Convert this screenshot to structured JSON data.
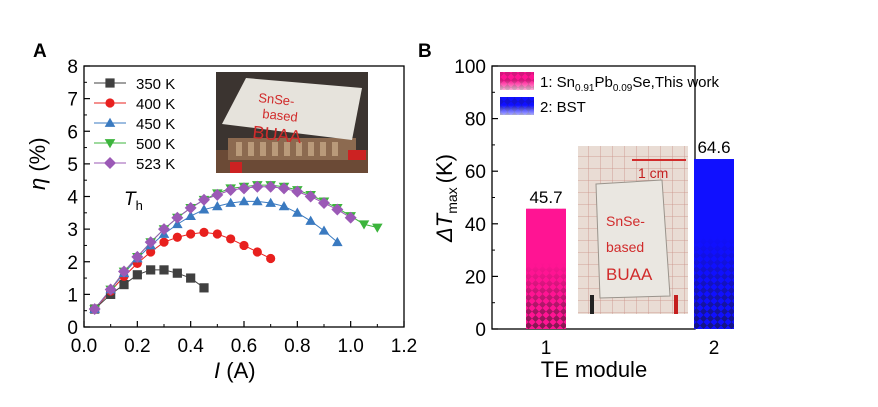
{
  "chart_data": [
    {
      "panel": "A",
      "type": "scatter",
      "xlabel": "I",
      "xlabel_unit": "(A)",
      "ylabel": "η",
      "ylabel_unit": "(%)",
      "xlim": [
        0,
        1.2
      ],
      "ylim": [
        0,
        8
      ],
      "xticks": [
        "0.0",
        "0.2",
        "0.4",
        "0.6",
        "0.8",
        "1.0",
        "1.2"
      ],
      "yticks": [
        "0",
        "1",
        "2",
        "3",
        "4",
        "5",
        "6",
        "7",
        "8"
      ],
      "legend_title": "T",
      "legend_title_sub": "h",
      "legend_position": "top-left",
      "series": [
        {
          "name": "350 K",
          "color": "#404040",
          "marker": "square",
          "x": [
            0.04,
            0.1,
            0.15,
            0.2,
            0.25,
            0.3,
            0.35,
            0.4,
            0.45
          ],
          "y": [
            0.55,
            1.0,
            1.3,
            1.6,
            1.75,
            1.75,
            1.65,
            1.5,
            1.2
          ]
        },
        {
          "name": "400 K",
          "color": "#e8201e",
          "marker": "circle",
          "x": [
            0.04,
            0.1,
            0.15,
            0.2,
            0.25,
            0.3,
            0.35,
            0.4,
            0.45,
            0.5,
            0.55,
            0.6,
            0.65,
            0.7
          ],
          "y": [
            0.55,
            1.1,
            1.55,
            1.95,
            2.3,
            2.6,
            2.75,
            2.85,
            2.9,
            2.85,
            2.7,
            2.5,
            2.3,
            2.1
          ]
        },
        {
          "name": "450 K",
          "color": "#3a7ac0",
          "marker": "triangle-up",
          "x": [
            0.04,
            0.1,
            0.15,
            0.2,
            0.25,
            0.3,
            0.35,
            0.4,
            0.45,
            0.5,
            0.55,
            0.6,
            0.65,
            0.7,
            0.75,
            0.8,
            0.85,
            0.9,
            0.95
          ],
          "y": [
            0.55,
            1.15,
            1.65,
            2.1,
            2.5,
            2.85,
            3.15,
            3.4,
            3.6,
            3.7,
            3.8,
            3.85,
            3.85,
            3.8,
            3.7,
            3.5,
            3.25,
            2.95,
            2.6
          ]
        },
        {
          "name": "500 K",
          "color": "#3cb43c",
          "marker": "triangle-down",
          "x": [
            0.04,
            0.1,
            0.15,
            0.2,
            0.25,
            0.3,
            0.35,
            0.4,
            0.45,
            0.5,
            0.55,
            0.6,
            0.65,
            0.7,
            0.75,
            0.8,
            0.85,
            0.9,
            0.95,
            1.0,
            1.05,
            1.1
          ],
          "y": [
            0.55,
            1.15,
            1.7,
            2.15,
            2.6,
            3.0,
            3.35,
            3.65,
            3.9,
            4.1,
            4.25,
            4.3,
            4.35,
            4.35,
            4.3,
            4.2,
            4.05,
            3.85,
            3.65,
            3.4,
            3.15,
            3.05
          ]
        },
        {
          "name": "523 K",
          "color": "#9b59b6",
          "marker": "diamond",
          "x": [
            0.04,
            0.1,
            0.15,
            0.2,
            0.25,
            0.3,
            0.35,
            0.4,
            0.45,
            0.5,
            0.55,
            0.6,
            0.65,
            0.7,
            0.75,
            0.8,
            0.85,
            0.9,
            0.95,
            1.0
          ],
          "y": [
            0.55,
            1.15,
            1.7,
            2.15,
            2.6,
            3.0,
            3.35,
            3.65,
            3.9,
            4.05,
            4.2,
            4.25,
            4.3,
            4.3,
            4.25,
            4.15,
            4.0,
            3.8,
            3.6,
            3.35
          ]
        }
      ]
    },
    {
      "panel": "B",
      "type": "bar",
      "xlabel": "TE module",
      "ylabel": "ΔT",
      "ylabel_sub": "max",
      "ylabel_unit": "(K)",
      "ylim": [
        0,
        100
      ],
      "yticks": [
        "0",
        "20",
        "40",
        "60",
        "80",
        "100"
      ],
      "categories": [
        "1",
        "2"
      ],
      "values": [
        45.7,
        64.6
      ],
      "value_labels": [
        "45.7",
        "64.6"
      ],
      "colors": [
        "#ff1493",
        "#1010ff"
      ],
      "legend_position": "top-left",
      "legend": [
        {
          "prefix": "1: Sn",
          "sub1": "0.91",
          "mid": "Pb",
          "sub2": "0.09",
          "suffix": "Se,This work"
        },
        {
          "prefix": "2: BST"
        }
      ]
    }
  ],
  "photos": {
    "photo_a_text": [
      "SnSe-",
      "based",
      "BUAA"
    ],
    "photo_b_text": [
      "SnSe-",
      "based",
      "BUAA"
    ],
    "photo_b_scale": "1 cm"
  }
}
